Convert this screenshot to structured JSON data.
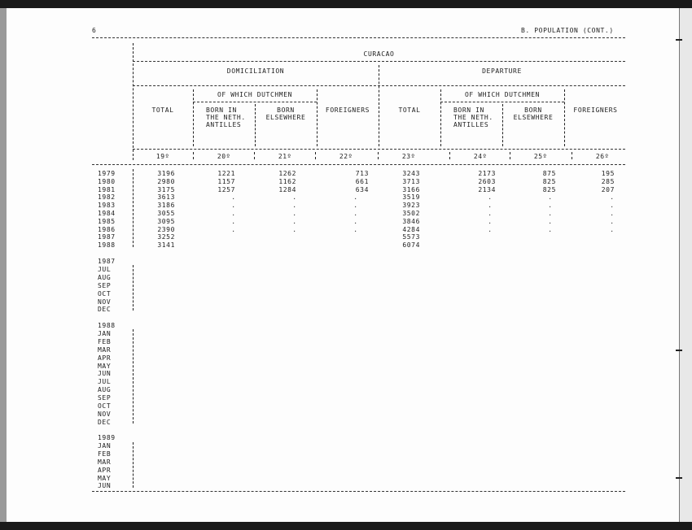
{
  "page_number": "6",
  "section_title": "B. POPULATION (CONT.)",
  "region": "CURACAO",
  "groups": {
    "domiciliation": "DOMICILIATION",
    "departure": "DEPARTURE"
  },
  "subgroup": "OF WHICH DUTCHMEN",
  "columns": {
    "total": "TOTAL",
    "born_neth_1": "BORN IN",
    "born_neth_2": "THE NETH.",
    "born_neth_3": "ANTILLES",
    "born_else_1": "BORN",
    "born_else_2": "ELSEWHERE",
    "foreigners": "FOREIGNERS"
  },
  "column_numbers": [
    "19º",
    "20º",
    "21º",
    "22º",
    "23º",
    "24º",
    "25º",
    "26º"
  ],
  "annual_rows": [
    {
      "year": "1979",
      "v": [
        "3196",
        "1221",
        "1262",
        "713",
        "3243",
        "2173",
        "875",
        "195"
      ]
    },
    {
      "year": "1980",
      "v": [
        "2980",
        "1157",
        "1162",
        "661",
        "3713",
        "2603",
        "825",
        "285"
      ]
    },
    {
      "year": "1981",
      "v": [
        "3175",
        "1257",
        "1284",
        "634",
        "3166",
        "2134",
        "825",
        "207"
      ]
    },
    {
      "year": "1982",
      "v": [
        "3613",
        ".",
        ".",
        ".",
        "3519",
        ".",
        ".",
        "."
      ]
    },
    {
      "year": "1983",
      "v": [
        "3186",
        ".",
        ".",
        ".",
        "3923",
        ".",
        ".",
        "."
      ]
    },
    {
      "year": "1984",
      "v": [
        "3055",
        ".",
        ".",
        ".",
        "3502",
        ".",
        ".",
        "."
      ]
    },
    {
      "year": "1985",
      "v": [
        "3095",
        ".",
        ".",
        ".",
        "3846",
        ".",
        ".",
        "."
      ]
    },
    {
      "year": "1986",
      "v": [
        "2390",
        ".",
        ".",
        ".",
        "4284",
        ".",
        ".",
        "."
      ]
    },
    {
      "year": "1987",
      "v": [
        "3252",
        "",
        "",
        "",
        "5573",
        "",
        "",
        ""
      ]
    },
    {
      "year": "1988",
      "v": [
        "3141",
        "",
        "",
        "",
        "6074",
        "",
        "",
        ""
      ]
    }
  ],
  "monthly_blocks": [
    {
      "year": "1987",
      "months": [
        "JUL",
        "AUG",
        "SEP",
        "OCT",
        "NOV",
        "DEC"
      ]
    },
    {
      "year": "1988",
      "months": [
        "JAN",
        "FEB",
        "MAR",
        "APR",
        "MAY",
        "JUN",
        "JUL",
        "AUG",
        "SEP",
        "OCT",
        "NOV",
        "DEC"
      ]
    },
    {
      "year": "1989",
      "months": [
        "JAN",
        "FEB",
        "MAR",
        "APR",
        "MAY",
        "JUN"
      ]
    }
  ]
}
